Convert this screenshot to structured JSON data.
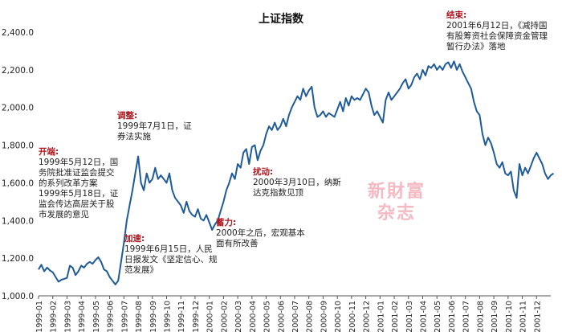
{
  "chart_data": {
    "type": "line",
    "title": "上证指数",
    "xlabel": "",
    "ylabel": "",
    "ylim": [
      1000,
      2400
    ],
    "yticks": [
      "1,000.0",
      "1,200.0",
      "1,400.0",
      "1,600.0",
      "1,800.0",
      "2,000.0",
      "2,200.0",
      "2,400.0"
    ],
    "grid": false,
    "line_color": "#1f5b98",
    "x_labels": [
      "1999-01",
      "1999-02",
      "1999-03",
      "1999-04",
      "1999-05",
      "1999-06",
      "1999-07",
      "1999-08",
      "1999-09",
      "1999-10",
      "1999-11",
      "1999-12",
      "2000-01",
      "2000-02",
      "2000-03",
      "2000-04",
      "2000-05",
      "2000-06",
      "2000-07",
      "2000-08",
      "2000-09",
      "2000-10",
      "2000-11",
      "2000-12",
      "2001-01",
      "2001-02",
      "2001-03",
      "2001-04",
      "2001-05",
      "2001-06",
      "2001-07",
      "2001-08",
      "2001-09",
      "2001-10",
      "2001-11",
      "2001-12"
    ],
    "series": [
      {
        "values": [
          [
            0,
            1140
          ],
          [
            0.2,
            1165
          ],
          [
            0.4,
            1130
          ],
          [
            0.6,
            1150
          ],
          [
            0.8,
            1135
          ],
          [
            1.0,
            1125
          ],
          [
            1.2,
            1100
          ],
          [
            1.4,
            1075
          ],
          [
            1.6,
            1085
          ],
          [
            1.8,
            1090
          ],
          [
            2.0,
            1095
          ],
          [
            2.2,
            1160
          ],
          [
            2.4,
            1150
          ],
          [
            2.6,
            1110
          ],
          [
            2.8,
            1130
          ],
          [
            3.0,
            1160
          ],
          [
            3.2,
            1150
          ],
          [
            3.4,
            1170
          ],
          [
            3.6,
            1180
          ],
          [
            3.8,
            1170
          ],
          [
            4.0,
            1190
          ],
          [
            4.2,
            1205
          ],
          [
            4.4,
            1180
          ],
          [
            4.6,
            1140
          ],
          [
            4.8,
            1130
          ],
          [
            5.0,
            1100
          ],
          [
            5.2,
            1080
          ],
          [
            5.4,
            1060
          ],
          [
            5.6,
            1080
          ],
          [
            5.8,
            1180
          ],
          [
            6.0,
            1280
          ],
          [
            6.2,
            1400
          ],
          [
            6.4,
            1480
          ],
          [
            6.6,
            1560
          ],
          [
            6.8,
            1650
          ],
          [
            7.0,
            1740
          ],
          [
            7.2,
            1600
          ],
          [
            7.4,
            1560
          ],
          [
            7.6,
            1650
          ],
          [
            7.8,
            1600
          ],
          [
            8.0,
            1620
          ],
          [
            8.2,
            1680
          ],
          [
            8.4,
            1620
          ],
          [
            8.6,
            1640
          ],
          [
            8.8,
            1620
          ],
          [
            9.0,
            1600
          ],
          [
            9.2,
            1650
          ],
          [
            9.4,
            1560
          ],
          [
            9.6,
            1520
          ],
          [
            9.8,
            1500
          ],
          [
            10.0,
            1480
          ],
          [
            10.2,
            1440
          ],
          [
            10.4,
            1500
          ],
          [
            10.6,
            1450
          ],
          [
            10.8,
            1430
          ],
          [
            11.0,
            1420
          ],
          [
            11.2,
            1460
          ],
          [
            11.4,
            1410
          ],
          [
            11.6,
            1400
          ],
          [
            11.8,
            1430
          ],
          [
            12.0,
            1390
          ],
          [
            12.2,
            1350
          ],
          [
            12.4,
            1380
          ],
          [
            12.6,
            1400
          ],
          [
            12.8,
            1450
          ],
          [
            13.0,
            1500
          ],
          [
            13.2,
            1560
          ],
          [
            13.4,
            1600
          ],
          [
            13.6,
            1650
          ],
          [
            13.8,
            1620
          ],
          [
            14.0,
            1700
          ],
          [
            14.2,
            1680
          ],
          [
            14.4,
            1760
          ],
          [
            14.6,
            1780
          ],
          [
            14.8,
            1700
          ],
          [
            15.0,
            1790
          ],
          [
            15.2,
            1800
          ],
          [
            15.4,
            1720
          ],
          [
            15.6,
            1770
          ],
          [
            15.8,
            1800
          ],
          [
            16.0,
            1860
          ],
          [
            16.2,
            1900
          ],
          [
            16.4,
            1880
          ],
          [
            16.6,
            1920
          ],
          [
            16.8,
            1880
          ],
          [
            17.0,
            1900
          ],
          [
            17.2,
            1940
          ],
          [
            17.4,
            1900
          ],
          [
            17.6,
            1960
          ],
          [
            17.8,
            2000
          ],
          [
            18.0,
            2030
          ],
          [
            18.2,
            2060
          ],
          [
            18.4,
            2040
          ],
          [
            18.6,
            2100
          ],
          [
            18.8,
            2060
          ],
          [
            19.0,
            2090
          ],
          [
            19.2,
            2110
          ],
          [
            19.4,
            2000
          ],
          [
            19.6,
            1950
          ],
          [
            19.8,
            1960
          ],
          [
            20.0,
            1980
          ],
          [
            20.2,
            1950
          ],
          [
            20.4,
            1970
          ],
          [
            20.6,
            1960
          ],
          [
            20.8,
            1950
          ],
          [
            21.0,
            1990
          ],
          [
            21.2,
            2030
          ],
          [
            21.4,
            1980
          ],
          [
            21.6,
            2050
          ],
          [
            21.8,
            2010
          ],
          [
            22.0,
            2060
          ],
          [
            22.2,
            2040
          ],
          [
            22.4,
            2050
          ],
          [
            22.6,
            2040
          ],
          [
            22.8,
            2070
          ],
          [
            23.0,
            2100
          ],
          [
            23.2,
            2080
          ],
          [
            23.4,
            2010
          ],
          [
            23.6,
            1960
          ],
          [
            23.8,
            1980
          ],
          [
            24.0,
            1950
          ],
          [
            24.2,
            1920
          ],
          [
            24.4,
            2040
          ],
          [
            24.6,
            2080
          ],
          [
            24.8,
            2040
          ],
          [
            25.0,
            2060
          ],
          [
            25.2,
            2080
          ],
          [
            25.4,
            2100
          ],
          [
            25.6,
            2130
          ],
          [
            25.8,
            2150
          ],
          [
            26.0,
            2100
          ],
          [
            26.2,
            2120
          ],
          [
            26.4,
            2160
          ],
          [
            26.6,
            2180
          ],
          [
            26.8,
            2150
          ],
          [
            27.0,
            2200
          ],
          [
            27.2,
            2170
          ],
          [
            27.4,
            2220
          ],
          [
            27.6,
            2210
          ],
          [
            27.8,
            2230
          ],
          [
            28.0,
            2200
          ],
          [
            28.2,
            2220
          ],
          [
            28.4,
            2200
          ],
          [
            28.6,
            2230
          ],
          [
            28.8,
            2240
          ],
          [
            29.0,
            2210
          ],
          [
            29.2,
            2245
          ],
          [
            29.4,
            2200
          ],
          [
            29.6,
            2230
          ],
          [
            29.8,
            2190
          ],
          [
            30.0,
            2160
          ],
          [
            30.2,
            2130
          ],
          [
            30.4,
            2100
          ],
          [
            30.6,
            2030
          ],
          [
            30.8,
            1980
          ],
          [
            31.0,
            1960
          ],
          [
            31.2,
            1860
          ],
          [
            31.4,
            1800
          ],
          [
            31.6,
            1840
          ],
          [
            31.8,
            1810
          ],
          [
            32.0,
            1760
          ],
          [
            32.2,
            1700
          ],
          [
            32.4,
            1680
          ],
          [
            32.6,
            1710
          ],
          [
            32.8,
            1650
          ],
          [
            33.0,
            1640
          ],
          [
            33.2,
            1660
          ],
          [
            33.4,
            1560
          ],
          [
            33.6,
            1520
          ],
          [
            33.8,
            1700
          ],
          [
            34.0,
            1640
          ],
          [
            34.2,
            1680
          ],
          [
            34.4,
            1650
          ],
          [
            34.6,
            1690
          ],
          [
            34.8,
            1730
          ],
          [
            35.0,
            1760
          ],
          [
            35.2,
            1730
          ],
          [
            35.4,
            1700
          ],
          [
            35.6,
            1650
          ],
          [
            35.8,
            1620
          ],
          [
            36.0,
            1640
          ],
          [
            36.2,
            1650
          ]
        ]
      }
    ],
    "annotations": [
      {
        "head": "开端:",
        "text": "1999年5月12日，国务院批准证监会提交的系列改革方案1999年5月18日，证监会传达高层关于股市发展的意见"
      },
      {
        "head": "调整:",
        "text": "1999年7月1日，证券法实施"
      },
      {
        "head": "加速:",
        "text": "1999年6月15日，人民日报发文《坚定信心、规范发展》"
      },
      {
        "head": "蓄力:",
        "text": "2000年之后，宏观基本面有所改善"
      },
      {
        "head": "扰动:",
        "text": "2000年3月10日，纳斯达克指数见顶"
      },
      {
        "head": "结束:",
        "text": "2001年6月12日，《减持国有股筹资社会保障资金管理暂行办法》落地"
      }
    ],
    "watermark": [
      "新財富",
      "杂志"
    ]
  }
}
